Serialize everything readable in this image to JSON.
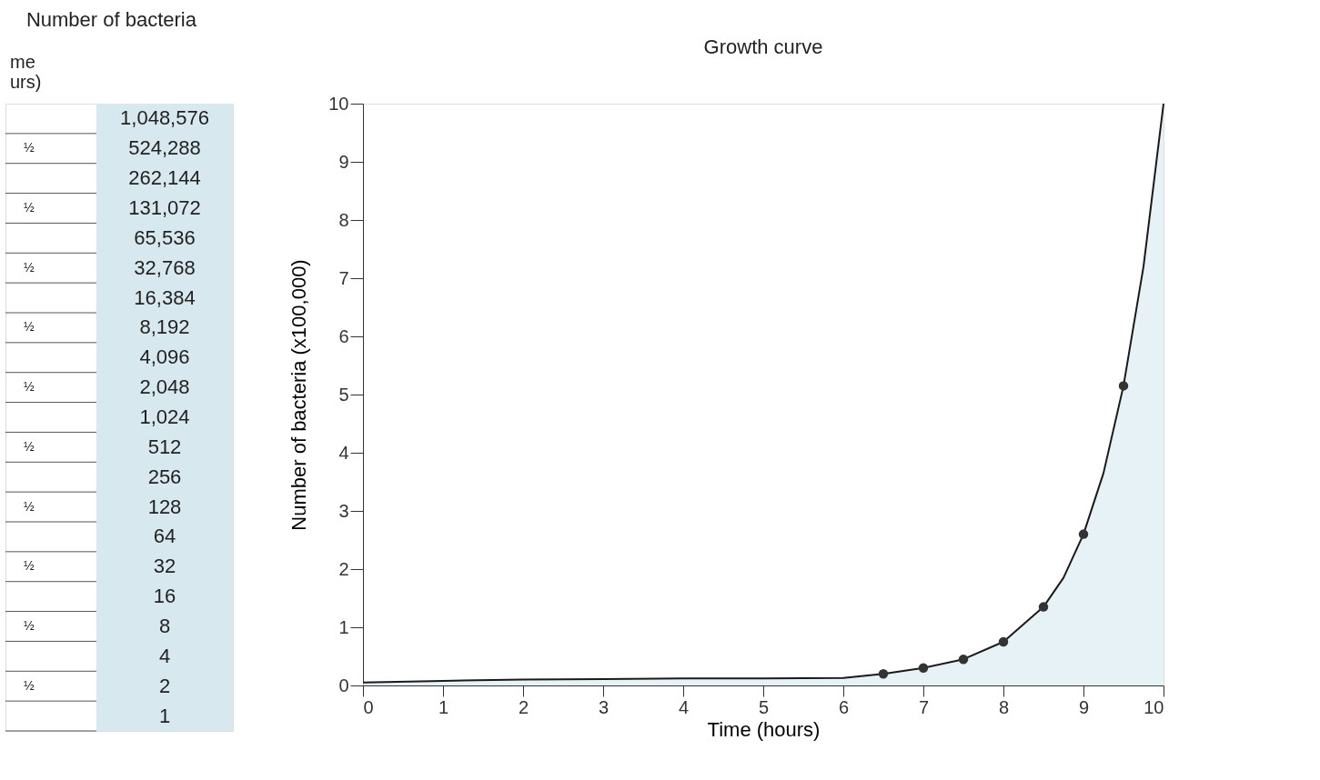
{
  "chart_data": [
    {
      "type": "other",
      "title": "Number of bacteria",
      "ylabel": "me urs)",
      "categories": [
        null,
        "½",
        null,
        "½",
        null,
        "½",
        null,
        "½",
        null,
        "½",
        null,
        "½",
        null,
        "½",
        null,
        "½",
        null,
        "½",
        null,
        "½",
        null
      ],
      "annotations": [
        "1,048,576",
        "524,288",
        "262,144",
        "131,072",
        "65,536",
        "32,768",
        "16,384",
        "8,192",
        "4,096",
        "2,048",
        "1,024",
        "512",
        "256",
        "128",
        "64",
        "32",
        "16",
        "8",
        "4",
        "2",
        "1"
      ]
    },
    {
      "type": "line",
      "title": "Growth curve",
      "xlabel": "Time (hours)",
      "ylabel": "Number of bacteria (x100,000)",
      "xlim": [
        0,
        10
      ],
      "ylim": [
        0,
        10
      ],
      "xticks": [
        0,
        1,
        2,
        3,
        4,
        5,
        6,
        7,
        8,
        9,
        10
      ],
      "yticks": [
        0,
        1,
        2,
        3,
        4,
        5,
        6,
        7,
        8,
        9,
        10
      ],
      "grid": false,
      "series": [
        {
          "type": "area",
          "color": "#dcedf1",
          "x": [
            0,
            1,
            2,
            3,
            4,
            5,
            6,
            6.5,
            7,
            7.5,
            8,
            8.5,
            8.75,
            9,
            9.25,
            9.5,
            9.75,
            10
          ],
          "values": [
            0.05,
            0.08,
            0.1,
            0.11,
            0.12,
            0.12,
            0.13,
            0.2,
            0.3,
            0.45,
            0.75,
            1.35,
            1.85,
            2.6,
            3.65,
            5.15,
            7.2,
            10
          ]
        },
        {
          "type": "scatter",
          "color": "#333333",
          "marker": "circle",
          "x": [
            6.5,
            7,
            7.5,
            8,
            8.5,
            9,
            9.5
          ],
          "values": [
            0.2,
            0.3,
            0.45,
            0.75,
            1.35,
            2.6,
            5.15
          ]
        }
      ]
    }
  ]
}
